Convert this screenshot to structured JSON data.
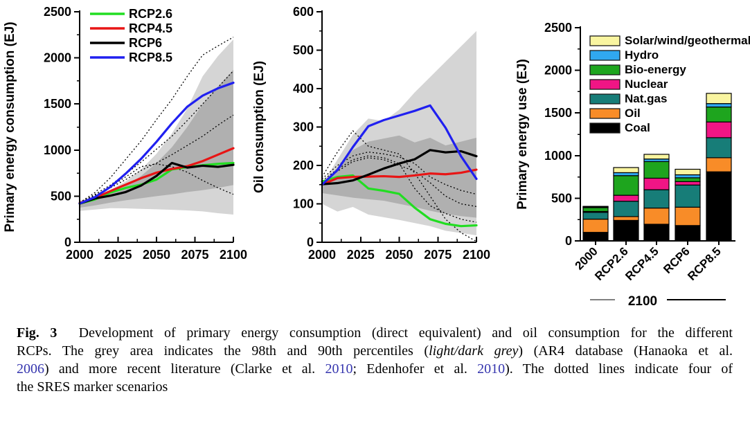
{
  "figure": {
    "caption": {
      "link_color": "#3535ae",
      "lines": [
        {
          "justify": true,
          "runs": [
            {
              "text": "Fig. 3",
              "bold": true
            },
            {
              "text": "  Development of primary energy consumption (direct equivalent) and oil consumption for the different"
            }
          ]
        },
        {
          "justify": true,
          "runs": [
            {
              "text": "RCPs. The grey area indicates the 98th and 90th percentiles ("
            },
            {
              "text": "light/dark grey",
              "italic": true
            },
            {
              "text": ") (AR4 database (Hanaoka et al."
            }
          ]
        },
        {
          "justify": true,
          "runs": [
            {
              "text": "2006",
              "link": true
            },
            {
              "text": ") and more recent literature (Clarke et al. "
            },
            {
              "text": "2010",
              "link": true
            },
            {
              "text": "; Edenhofer et al. "
            },
            {
              "text": "2010",
              "link": true
            },
            {
              "text": "). The dotted lines indicate four of"
            }
          ]
        },
        {
          "justify": false,
          "runs": [
            {
              "text": "the SRES marker scenarios"
            }
          ]
        }
      ]
    }
  },
  "chart_data": [
    {
      "type": "line",
      "title": "",
      "xlabel": "",
      "ylabel": "Primary energy consumption (EJ)",
      "xlim": [
        2000,
        2100
      ],
      "ylim": [
        0,
        2500
      ],
      "xticks": [
        2000,
        2025,
        2050,
        2075,
        2100
      ],
      "xminor": [
        2012.5,
        2037.5,
        2062.5,
        2087.5
      ],
      "yticks": [
        0,
        500,
        1000,
        1500,
        2000,
        2500
      ],
      "yminor": [
        250,
        750,
        1250,
        1750,
        2250
      ],
      "grid": false,
      "legend_position": "top-left",
      "x": [
        2000,
        2010,
        2020,
        2030,
        2040,
        2050,
        2060,
        2070,
        2080,
        2090,
        2100
      ],
      "series": [
        {
          "name": "RCP2.6",
          "color": "#22dd22",
          "values": [
            420,
            465,
            540,
            590,
            625,
            680,
            790,
            815,
            835,
            850,
            860
          ]
        },
        {
          "name": "RCP4.5",
          "color": "#e81515",
          "values": [
            425,
            480,
            555,
            625,
            695,
            755,
            795,
            825,
            880,
            950,
            1020
          ]
        },
        {
          "name": "RCP6",
          "color": "#000000",
          "values": [
            420,
            475,
            505,
            545,
            615,
            720,
            860,
            810,
            830,
            818,
            840
          ]
        },
        {
          "name": "RCP8.5",
          "color": "#2020f0",
          "values": [
            420,
            490,
            600,
            745,
            905,
            1090,
            1290,
            1470,
            1590,
            1670,
            1730
          ]
        }
      ],
      "sres_dotted": [
        {
          "values": [
            430,
            540,
            700,
            900,
            1100,
            1330,
            1550,
            1800,
            2030,
            2130,
            2225
          ]
        },
        {
          "values": [
            425,
            520,
            620,
            740,
            870,
            1010,
            1150,
            1320,
            1500,
            1680,
            1860
          ]
        },
        {
          "values": [
            425,
            510,
            590,
            680,
            780,
            860,
            950,
            1050,
            1150,
            1270,
            1380
          ]
        },
        {
          "values": [
            420,
            500,
            600,
            710,
            820,
            850,
            820,
            760,
            670,
            590,
            520
          ]
        }
      ],
      "bands": {
        "light": {
          "upper": [
            450,
            500,
            570,
            660,
            790,
            960,
            1180,
            1450,
            1800,
            2020,
            2200
          ],
          "lower": [
            340,
            355,
            370,
            368,
            362,
            358,
            352,
            345,
            335,
            315,
            300
          ]
        },
        "dark": {
          "upper": [
            440,
            480,
            530,
            610,
            720,
            860,
            1030,
            1250,
            1500,
            1690,
            1870
          ],
          "lower": [
            375,
            400,
            430,
            455,
            478,
            500,
            520,
            545,
            565,
            590,
            620
          ]
        }
      },
      "band_colors": {
        "light": "#d5d5d5",
        "dark": "#b0b0b0"
      }
    },
    {
      "type": "line",
      "title": "",
      "xlabel": "",
      "ylabel": "Oil consumption (EJ)",
      "xlim": [
        2000,
        2100
      ],
      "ylim": [
        0,
        600
      ],
      "xticks": [
        2000,
        2025,
        2050,
        2075,
        2100
      ],
      "xminor": [
        2012.5,
        2037.5,
        2062.5,
        2087.5
      ],
      "yticks": [
        0,
        100,
        200,
        300,
        400,
        500,
        600
      ],
      "yminor": [
        50,
        150,
        250,
        350,
        450,
        550
      ],
      "grid": false,
      "legend_position": "none",
      "x": [
        2000,
        2010,
        2020,
        2030,
        2040,
        2050,
        2060,
        2070,
        2080,
        2090,
        2100
      ],
      "series": [
        {
          "name": "RCP2.6",
          "color": "#22dd22",
          "values": [
            158,
            170,
            174,
            140,
            134,
            126,
            90,
            60,
            48,
            42,
            44
          ]
        },
        {
          "name": "RCP4.5",
          "color": "#e81515",
          "values": [
            150,
            167,
            170,
            171,
            172,
            170,
            174,
            179,
            177,
            181,
            189
          ]
        },
        {
          "name": "RCP6",
          "color": "#000000",
          "values": [
            151,
            154,
            161,
            176,
            192,
            205,
            216,
            240,
            234,
            237,
            224
          ]
        },
        {
          "name": "RCP8.5",
          "color": "#2020f0",
          "values": [
            150,
            188,
            248,
            302,
            318,
            330,
            342,
            356,
            298,
            224,
            165
          ]
        }
      ],
      "sres_dotted": [
        {
          "values": [
            170,
            235,
            290,
            250,
            240,
            230,
            180,
            120,
            60,
            25,
            2
          ]
        },
        {
          "values": [
            165,
            200,
            225,
            235,
            230,
            222,
            205,
            170,
            150,
            135,
            125
          ]
        },
        {
          "values": [
            160,
            190,
            215,
            225,
            220,
            205,
            140,
            95,
            75,
            60,
            52
          ]
        },
        {
          "values": [
            155,
            185,
            210,
            220,
            215,
            200,
            185,
            155,
            120,
            100,
            93
          ]
        }
      ],
      "bands": {
        "light": {
          "upper": [
            150,
            215,
            280,
            322,
            315,
            345,
            390,
            430,
            470,
            510,
            550
          ],
          "lower": [
            100,
            80,
            92,
            72,
            65,
            58,
            50,
            42,
            30,
            24,
            18
          ]
        },
        "dark": {
          "upper": [
            145,
            195,
            240,
            262,
            270,
            278,
            260,
            272,
            252,
            262,
            272
          ],
          "lower": [
            128,
            122,
            116,
            112,
            108,
            100,
            92,
            82,
            74,
            68,
            64
          ]
        }
      },
      "band_colors": {
        "light": "#d5d5d5",
        "dark": "#b0b0b0"
      }
    },
    {
      "type": "bar",
      "title": "",
      "xlabel": "",
      "ylabel": "Primary energy use (EJ)",
      "ylim": [
        0,
        2500
      ],
      "yticks": [
        0,
        500,
        1000,
        1500,
        2000,
        2500
      ],
      "yminor": [
        250,
        750,
        1250,
        1750,
        2250
      ],
      "grid": false,
      "legend_position": "top-left",
      "categories": [
        "2000",
        "RCP2.6",
        "RCP4.5",
        "RCP6",
        "RCP8.5"
      ],
      "group_label": "2100",
      "stack_note": "stacked bottom-up in series order",
      "series": [
        {
          "name": "Coal",
          "color": "#000000",
          "values": [
            100,
            240,
            195,
            180,
            810
          ]
        },
        {
          "name": "Oil",
          "color": "#f88c28",
          "values": [
            155,
            45,
            190,
            215,
            165
          ]
        },
        {
          "name": "Nat.gas",
          "color": "#177d78",
          "values": [
            80,
            180,
            215,
            260,
            235
          ]
        },
        {
          "name": "Nuclear",
          "color": "#f01585",
          "values": [
            10,
            70,
            135,
            40,
            185
          ]
        },
        {
          "name": "Bio-energy",
          "color": "#1ea51e",
          "values": [
            45,
            230,
            195,
            45,
            175
          ]
        },
        {
          "name": "Hydro",
          "color": "#30a8f0",
          "values": [
            10,
            35,
            30,
            35,
            40
          ]
        },
        {
          "name": "Solar/wind/geothermal",
          "color": "#f9f5a0",
          "values": [
            5,
            60,
            55,
            65,
            120
          ]
        }
      ]
    }
  ]
}
